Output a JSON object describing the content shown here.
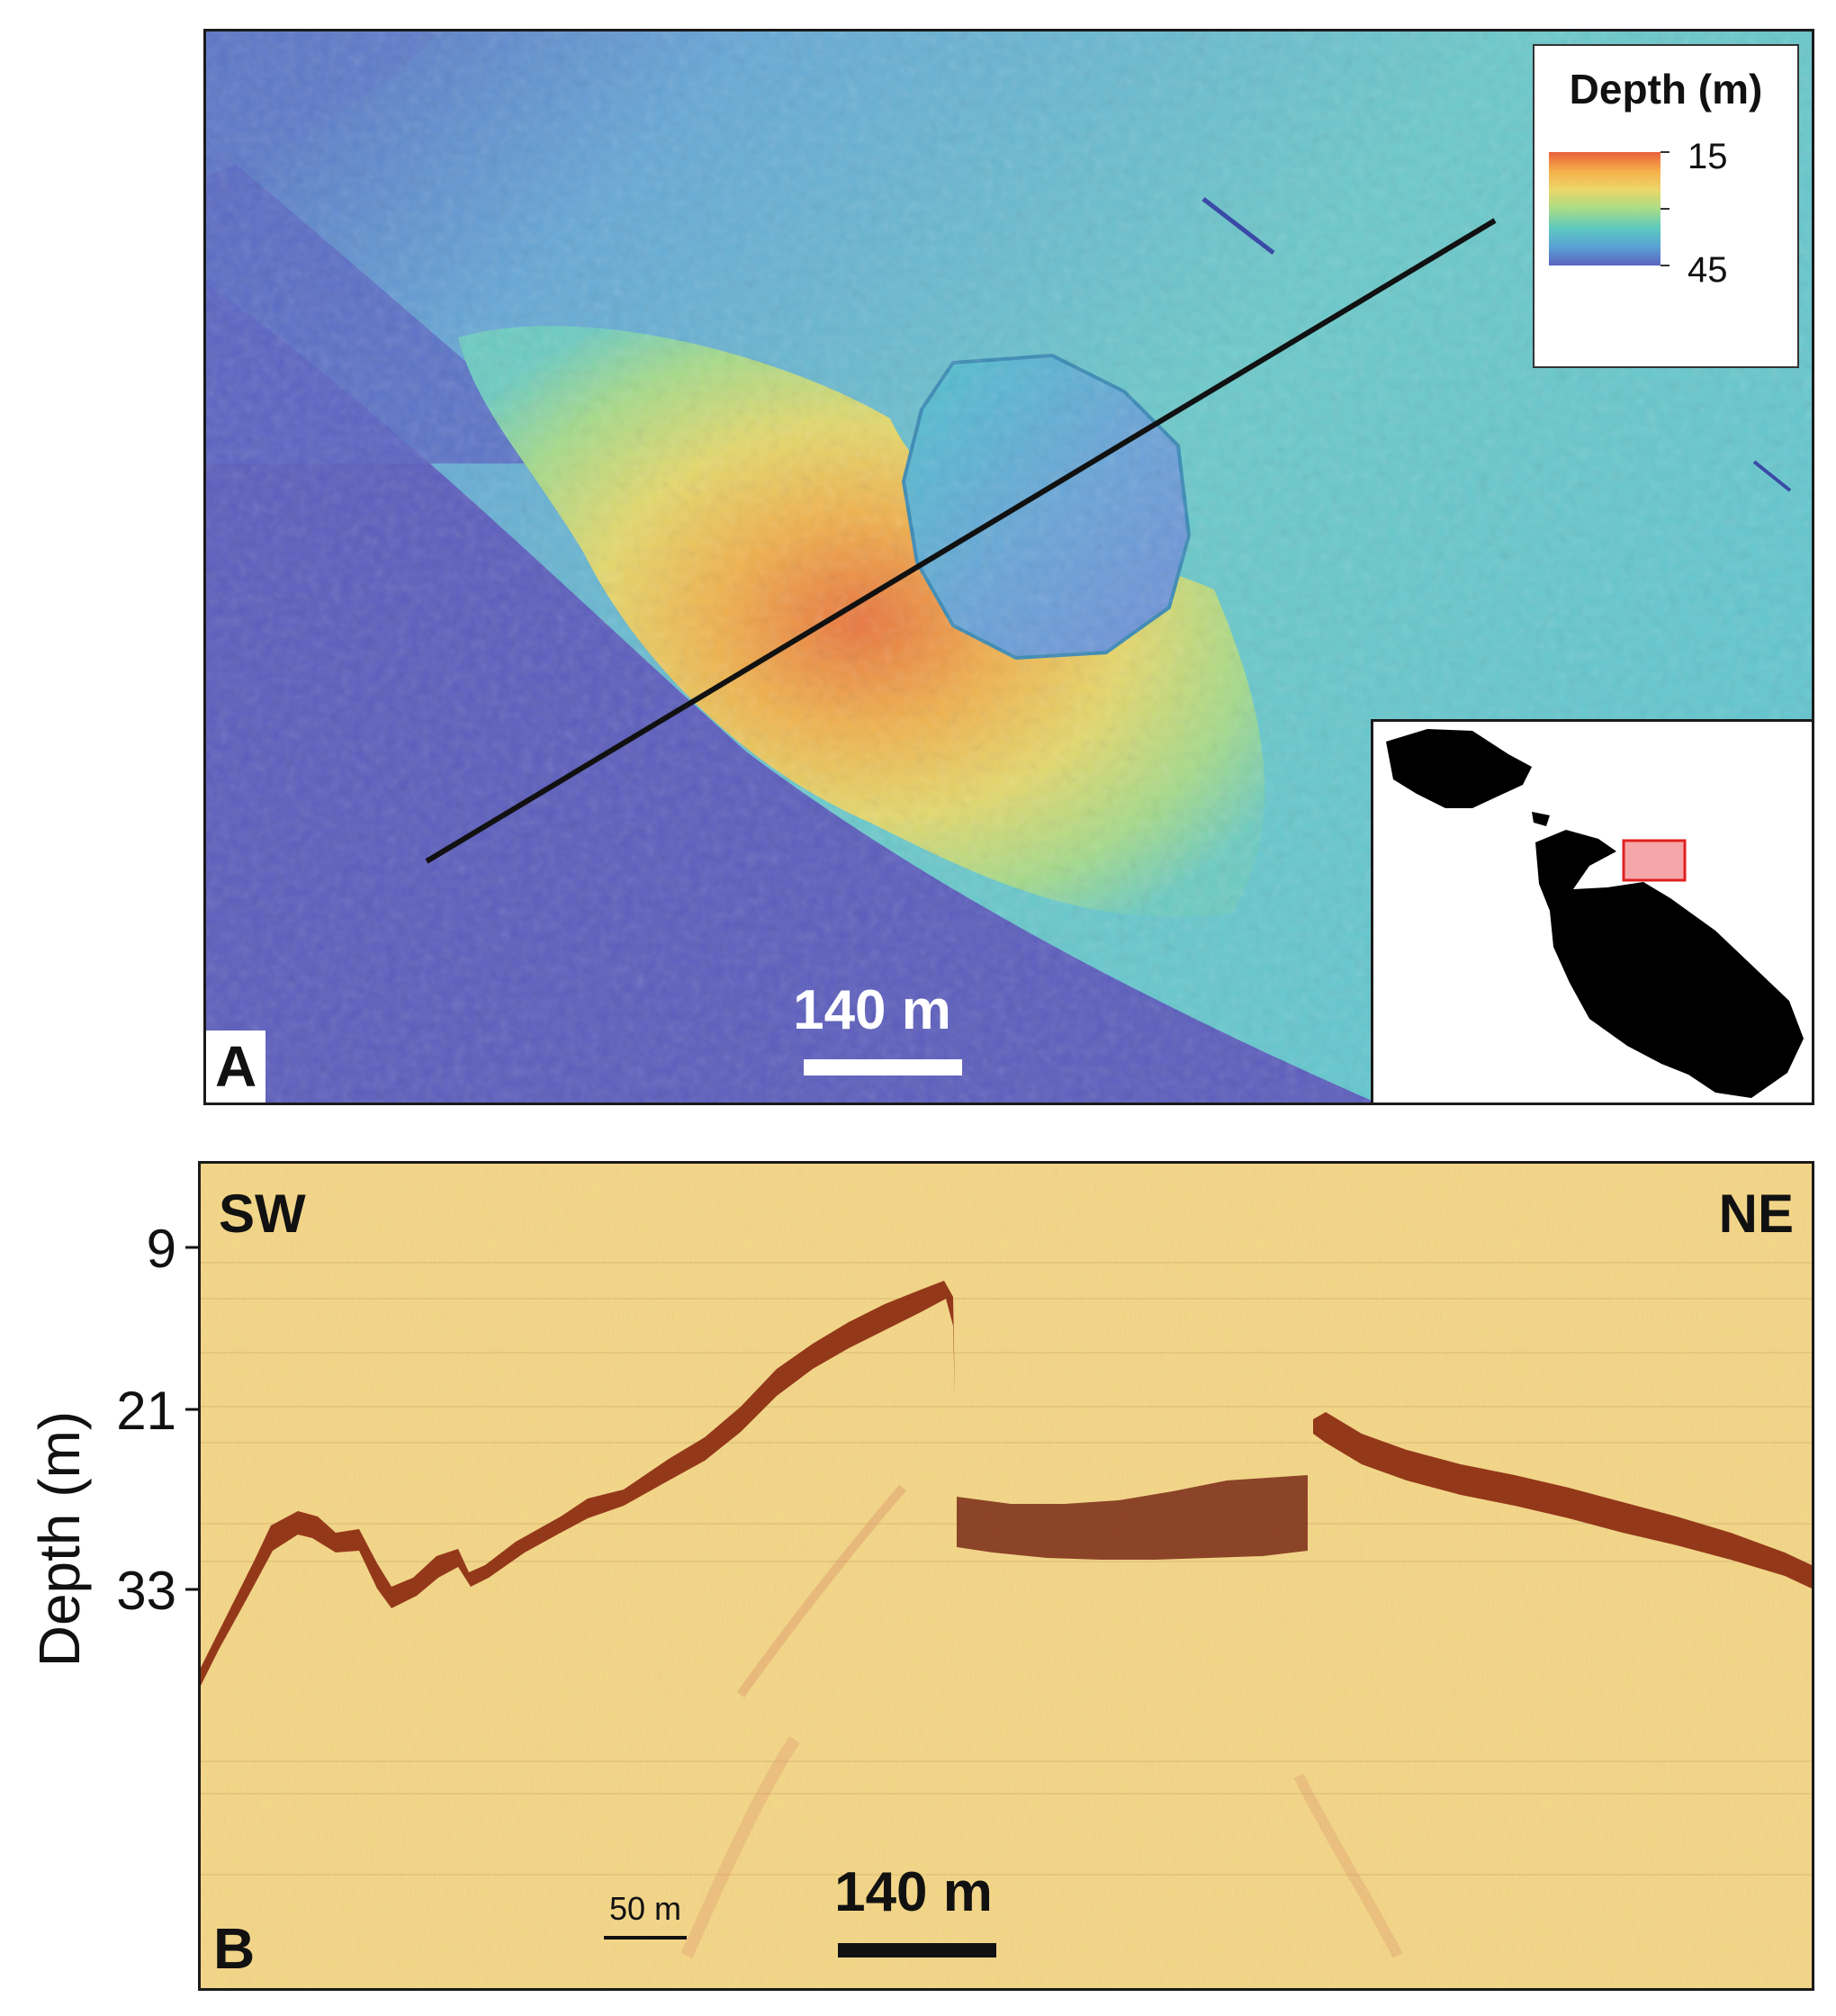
{
  "panel_a": {
    "letter": "A",
    "legend": {
      "title": "Depth (m)",
      "min_label": "15",
      "max_label": "45",
      "gradient_colors": [
        "#e9603c",
        "#f6b04a",
        "#ecd66a",
        "#a9dc86",
        "#5cc9bf",
        "#5aa3d4",
        "#5b63c0"
      ]
    },
    "scale_bar": {
      "label": "140 m"
    },
    "inset_highlight_color": "#f5a6a8",
    "profile_line_color": "#111111"
  },
  "panel_b": {
    "letter": "B",
    "left_direction": "SW",
    "right_direction": "NE",
    "y_axis_label": "Depth (m)",
    "y_ticks": [
      "9",
      "21",
      "33"
    ],
    "scale_bar_small": {
      "label": "50 m"
    },
    "scale_bar_large": {
      "label": "140 m"
    },
    "background_color": "#f3d98a",
    "seabed_color": "#8c2a10"
  }
}
